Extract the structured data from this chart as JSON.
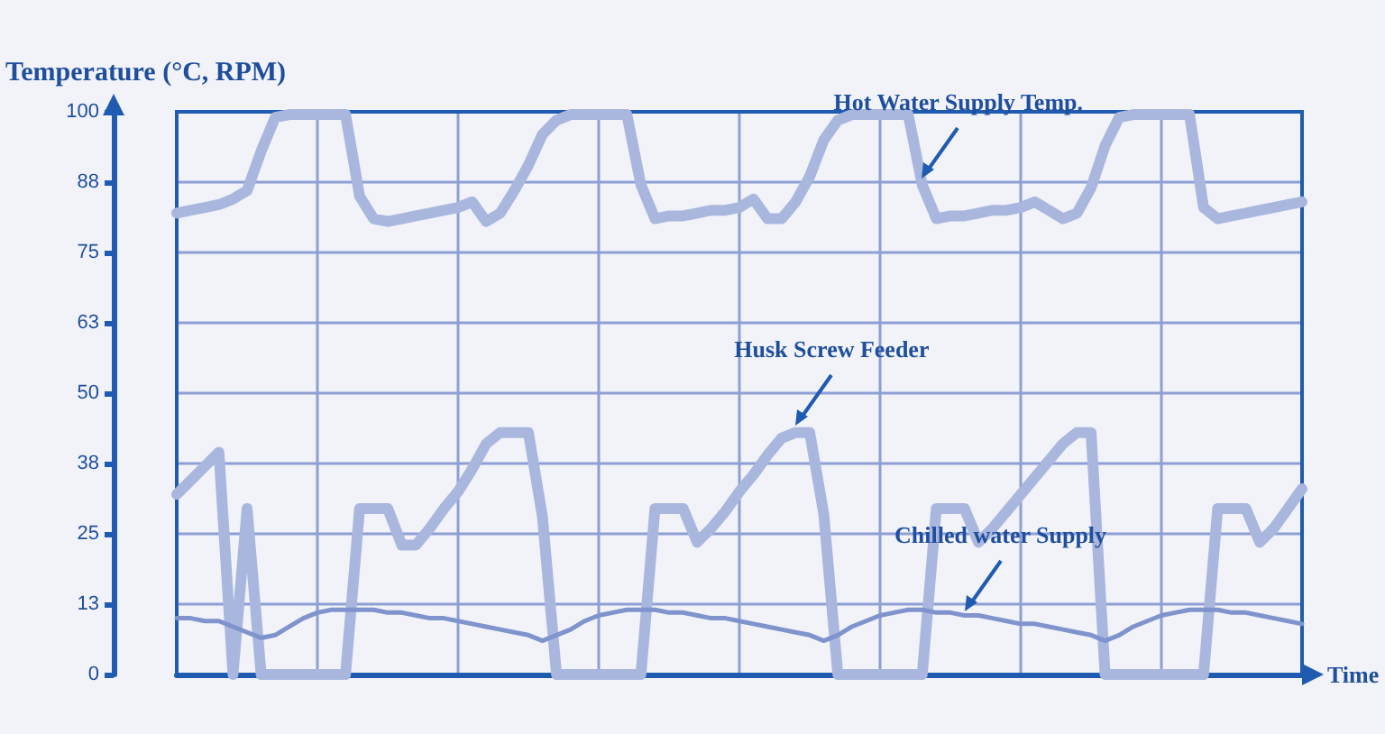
{
  "chart_data": {
    "type": "line",
    "ylabel": "Temperature (°C, RPM)",
    "xlabel": "Time",
    "ylim": [
      0,
      100
    ],
    "categories": [
      null,
      null,
      null,
      null,
      null,
      null,
      null,
      null,
      null,
      null,
      null,
      null,
      null,
      null,
      null,
      null,
      null,
      null,
      null,
      null,
      null,
      null,
      null,
      null,
      null,
      null,
      null,
      null,
      null,
      null,
      null,
      null,
      null,
      null,
      null,
      null,
      null,
      null,
      null,
      null,
      null,
      null,
      null,
      null,
      null,
      null,
      null,
      null,
      null,
      null,
      null,
      null,
      null,
      null,
      null,
      null,
      null,
      null,
      null,
      null,
      null,
      null,
      null,
      null,
      null,
      null,
      null,
      null,
      null,
      null,
      null,
      null,
      null,
      null,
      null,
      null,
      null,
      null,
      null,
      null,
      null
    ],
    "yticks": [
      0,
      {
        "value": 12.5,
        "label": "13"
      },
      25,
      {
        "value": 37.5,
        "label": "38"
      },
      50,
      {
        "value": 62.5,
        "label": "63"
      },
      75,
      {
        "value": 87.5,
        "label": "88"
      },
      100
    ],
    "grid": true,
    "tick_labels": "y",
    "marker": "none",
    "line_style": "solid",
    "legend": false,
    "series": [
      {
        "name": "Hot Water Supply Temp.",
        "color": "#a9b7de",
        "values": [
          82,
          82.5,
          83,
          83.5,
          84.5,
          86,
          93,
          99,
          99.5,
          99.5,
          99.5,
          99.5,
          99.5,
          85,
          81,
          80.5,
          81,
          81.5,
          82,
          82.5,
          83,
          84,
          80.5,
          82,
          86,
          90.5,
          96,
          98.5,
          99.5,
          99.5,
          99.5,
          99.5,
          99.5,
          87,
          81,
          81.5,
          81.5,
          82,
          82.5,
          82.5,
          83,
          84.5,
          81,
          81,
          84,
          88.5,
          95,
          98.5,
          99.5,
          99.5,
          99.5,
          99.5,
          99.5,
          87,
          81,
          81.5,
          81.5,
          82,
          82.5,
          82.5,
          83,
          84,
          82.5,
          81,
          82,
          86.5,
          94,
          99,
          99.5,
          99.5,
          99.5,
          99.5,
          99.5,
          83,
          81,
          81.5,
          82,
          82.5,
          83,
          83.5,
          84
        ]
      },
      {
        "name": "Husk Screw Feeder",
        "color": "#a9b7de",
        "values": [
          32,
          34.5,
          37,
          39.5,
          0,
          29.5,
          0,
          0,
          0,
          0,
          0,
          0,
          0,
          29.5,
          29.5,
          29.5,
          23,
          23,
          26,
          29.5,
          32.5,
          36.5,
          41,
          43,
          43,
          43,
          28,
          0,
          0,
          0,
          0,
          0,
          0,
          0,
          29.5,
          29.5,
          29.5,
          23.5,
          26,
          29,
          32.5,
          35.5,
          39,
          42,
          43,
          43,
          28.5,
          0,
          0,
          0,
          0,
          0,
          0,
          0,
          29.5,
          29.5,
          29.5,
          23.5,
          26,
          29,
          32,
          35,
          38,
          41,
          43,
          43,
          0,
          0,
          0,
          0,
          0,
          0,
          0,
          0,
          29.5,
          29.5,
          29.5,
          23.5,
          26,
          29.5,
          33
        ]
      },
      {
        "name": "Chilled water Supply",
        "color": "#7f93cc",
        "values": [
          10,
          10,
          9.5,
          9.5,
          8.5,
          7.5,
          6.5,
          7,
          8.5,
          10,
          11,
          11.5,
          11.5,
          11.5,
          11.5,
          11,
          11,
          10.5,
          10,
          10,
          9.5,
          9,
          8.5,
          8,
          7.5,
          7,
          6,
          7,
          8,
          9.5,
          10.5,
          11,
          11.5,
          11.5,
          11.5,
          11,
          11,
          10.5,
          10,
          10,
          9.5,
          9,
          8.5,
          8,
          7.5,
          7,
          6,
          7,
          8.5,
          9.5,
          10.5,
          11,
          11.5,
          11.5,
          11,
          11,
          10.5,
          10.5,
          10,
          9.5,
          9,
          9,
          8.5,
          8,
          7.5,
          7,
          6,
          7,
          8.5,
          9.5,
          10.5,
          11,
          11.5,
          11.5,
          11.5,
          11,
          11,
          10.5,
          10,
          9.5,
          9
        ]
      }
    ]
  }
}
